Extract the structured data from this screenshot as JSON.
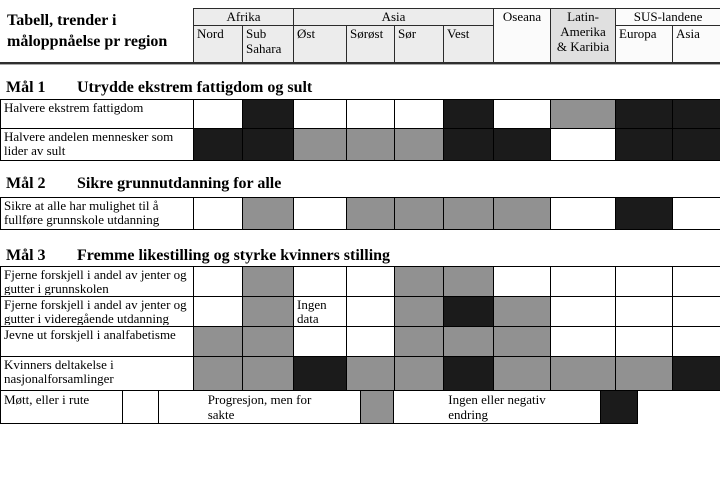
{
  "title": "Tabell, trender i måloppnåelse pr region",
  "colors": {
    "met": "#ffffff",
    "slow": "#919191",
    "none": "#1b1b1b"
  },
  "nodata_label": "Ingen data",
  "header": {
    "groups": [
      {
        "label": "Afrika",
        "bg": "#ececec",
        "cols": [
          "Nord",
          "Sub Sahara"
        ]
      },
      {
        "label": "Asia",
        "bg": "#ececec",
        "cols": [
          "Øst",
          "Sørøst",
          "Sør",
          "Vest"
        ]
      },
      {
        "label": "Oseana",
        "bg": "#fbfbfb",
        "cols": []
      },
      {
        "label": "Latin-\nAmerika\n& Karibia",
        "bg": "#e0e0e0",
        "cols": []
      },
      {
        "label": "SUS-landene",
        "bg": "#fbfbfb",
        "cols": [
          "Europa",
          "Asia"
        ]
      }
    ]
  },
  "sections": [
    {
      "goal": "Mål 1",
      "heading": "Utrydde ekstrem fattigdom og sult",
      "rows": [
        {
          "label": "Halvere ekstrem fattigdom",
          "cells": [
            "met",
            "none",
            "met",
            "met",
            "met",
            "none",
            "met",
            "slow",
            "none",
            "none"
          ]
        },
        {
          "label": "Halvere andelen mennesker som lider av sult",
          "cells": [
            "none",
            "none",
            "slow",
            "slow",
            "slow",
            "none",
            "none",
            "met",
            "none",
            "none"
          ]
        }
      ]
    },
    {
      "goal": "Mål 2",
      "heading": "Sikre grunnutdanning for alle",
      "rows": [
        {
          "label": "Sikre at alle har mulighet til å fullføre grunnskole utdanning",
          "cells": [
            "met",
            "slow",
            "met",
            "slow",
            "slow",
            "slow",
            "slow",
            "met",
            "none",
            "met"
          ]
        }
      ]
    },
    {
      "goal": "Mål 3",
      "heading": "Fremme likestilling og styrke kvinners stilling",
      "rows": [
        {
          "label": "Fjerne forskjell i andel av jenter og gutter i grunnskolen",
          "cells": [
            "met",
            "slow",
            "met",
            "met",
            "slow",
            "slow",
            "met",
            "met",
            "met",
            "met"
          ]
        },
        {
          "label": "Fjerne forskjell i andel av jenter og gutter i videregående utdanning",
          "cells": [
            "met",
            "slow",
            "nodata",
            "met",
            "slow",
            "none",
            "slow",
            "met",
            "met",
            "met"
          ]
        },
        {
          "label": "Jevne ut forskjell i analfabetisme",
          "cells": [
            "slow",
            "slow",
            "met",
            "met",
            "slow",
            "slow",
            "slow",
            "met",
            "met",
            "met"
          ]
        },
        {
          "label": "Kvinners deltakelse i nasjonalforsamlinger",
          "cells": [
            "slow",
            "slow",
            "none",
            "slow",
            "slow",
            "none",
            "slow",
            "slow",
            "slow",
            "none"
          ]
        }
      ]
    }
  ],
  "legend": [
    {
      "label": "Møtt, eller i rute",
      "key": "met"
    },
    {
      "label": "Progresjon, men for\nsakte",
      "key": "slow"
    },
    {
      "label": "Ingen eller negativ\nendring",
      "key": "none"
    }
  ]
}
